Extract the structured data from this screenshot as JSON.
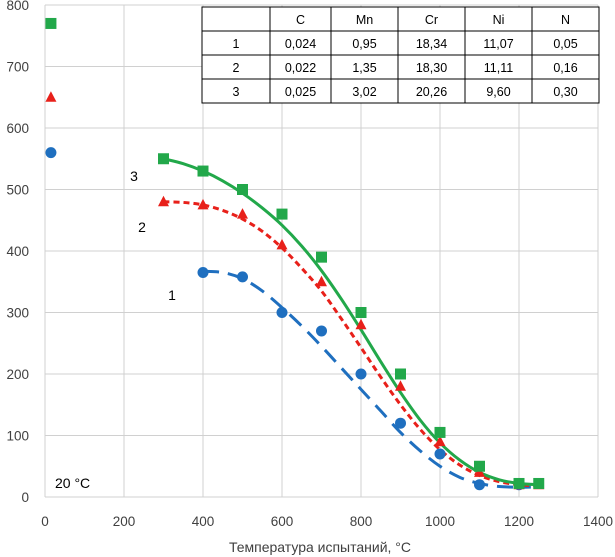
{
  "chart_data": {
    "type": "scatter",
    "xlabel": "Температура испытаний, °C",
    "ylabel": "",
    "xlim": [
      0,
      1400
    ],
    "ylim": [
      0,
      800
    ],
    "x_ticks": [
      "0",
      "200",
      "400",
      "600",
      "800",
      "1000",
      "1200",
      "1400"
    ],
    "y_ticks": [
      "0",
      "100",
      "200",
      "300",
      "400",
      "500",
      "600",
      "700",
      "800"
    ],
    "grid": true,
    "series": [
      {
        "name": "1",
        "marker": "circle",
        "color": "#1f6fbf",
        "line_style": "long-dash",
        "points": [
          [
            15,
            560
          ],
          [
            400,
            365
          ],
          [
            500,
            358
          ],
          [
            600,
            300
          ],
          [
            700,
            270
          ],
          [
            800,
            200
          ],
          [
            900,
            120
          ],
          [
            1000,
            70
          ],
          [
            1100,
            20
          ],
          [
            1200,
            20
          ]
        ],
        "curve": [
          [
            400,
            367
          ],
          [
            450,
            365
          ],
          [
            500,
            355
          ],
          [
            550,
            335
          ],
          [
            600,
            308
          ],
          [
            650,
            278
          ],
          [
            700,
            245
          ],
          [
            750,
            210
          ],
          [
            800,
            175
          ],
          [
            850,
            140
          ],
          [
            900,
            105
          ],
          [
            950,
            75
          ],
          [
            1000,
            50
          ],
          [
            1050,
            32
          ],
          [
            1100,
            22
          ],
          [
            1150,
            17
          ],
          [
            1200,
            16
          ],
          [
            1230,
            16
          ]
        ]
      },
      {
        "name": "2",
        "marker": "triangle",
        "color": "#e8201a",
        "line_style": "short-dash",
        "points": [
          [
            15,
            650
          ],
          [
            300,
            480
          ],
          [
            400,
            475
          ],
          [
            500,
            460
          ],
          [
            600,
            410
          ],
          [
            700,
            350
          ],
          [
            800,
            280
          ],
          [
            900,
            180
          ],
          [
            1000,
            90
          ],
          [
            1100,
            40
          ],
          [
            1200,
            20
          ],
          [
            1250,
            20
          ]
        ],
        "curve": [
          [
            300,
            480
          ],
          [
            350,
            479
          ],
          [
            400,
            475
          ],
          [
            450,
            466
          ],
          [
            500,
            452
          ],
          [
            550,
            432
          ],
          [
            600,
            405
          ],
          [
            650,
            372
          ],
          [
            700,
            335
          ],
          [
            750,
            290
          ],
          [
            800,
            243
          ],
          [
            850,
            195
          ],
          [
            900,
            150
          ],
          [
            950,
            110
          ],
          [
            1000,
            77
          ],
          [
            1050,
            52
          ],
          [
            1100,
            35
          ],
          [
            1150,
            25
          ],
          [
            1200,
            20
          ],
          [
            1250,
            18
          ]
        ]
      },
      {
        "name": "3",
        "marker": "square",
        "color": "#22a84a",
        "line_style": "solid",
        "points": [
          [
            15,
            770
          ],
          [
            300,
            550
          ],
          [
            400,
            530
          ],
          [
            500,
            500
          ],
          [
            600,
            460
          ],
          [
            700,
            390
          ],
          [
            800,
            300
          ],
          [
            900,
            200
          ],
          [
            1000,
            105
          ],
          [
            1100,
            50
          ],
          [
            1200,
            22
          ],
          [
            1250,
            22
          ]
        ],
        "curve": [
          [
            300,
            550
          ],
          [
            350,
            542
          ],
          [
            400,
            530
          ],
          [
            450,
            514
          ],
          [
            500,
            494
          ],
          [
            550,
            470
          ],
          [
            600,
            442
          ],
          [
            650,
            408
          ],
          [
            700,
            368
          ],
          [
            750,
            322
          ],
          [
            800,
            272
          ],
          [
            850,
            220
          ],
          [
            900,
            170
          ],
          [
            950,
            125
          ],
          [
            1000,
            88
          ],
          [
            1050,
            60
          ],
          [
            1100,
            40
          ],
          [
            1150,
            28
          ],
          [
            1200,
            22
          ],
          [
            1250,
            20
          ]
        ]
      }
    ],
    "annotations": [
      "20 °C"
    ],
    "table": {
      "headers": [
        "",
        "C",
        "Mn",
        "Cr",
        "Ni",
        "N"
      ],
      "rows": [
        [
          "1",
          "0,024",
          "0,95",
          "18,34",
          "11,07",
          "0,05"
        ],
        [
          "2",
          "0,022",
          "1,35",
          "18,30",
          "11,11",
          "0,16"
        ],
        [
          "3",
          "0,025",
          "3,02",
          "20,26",
          "9,60",
          "0,30"
        ]
      ]
    }
  }
}
